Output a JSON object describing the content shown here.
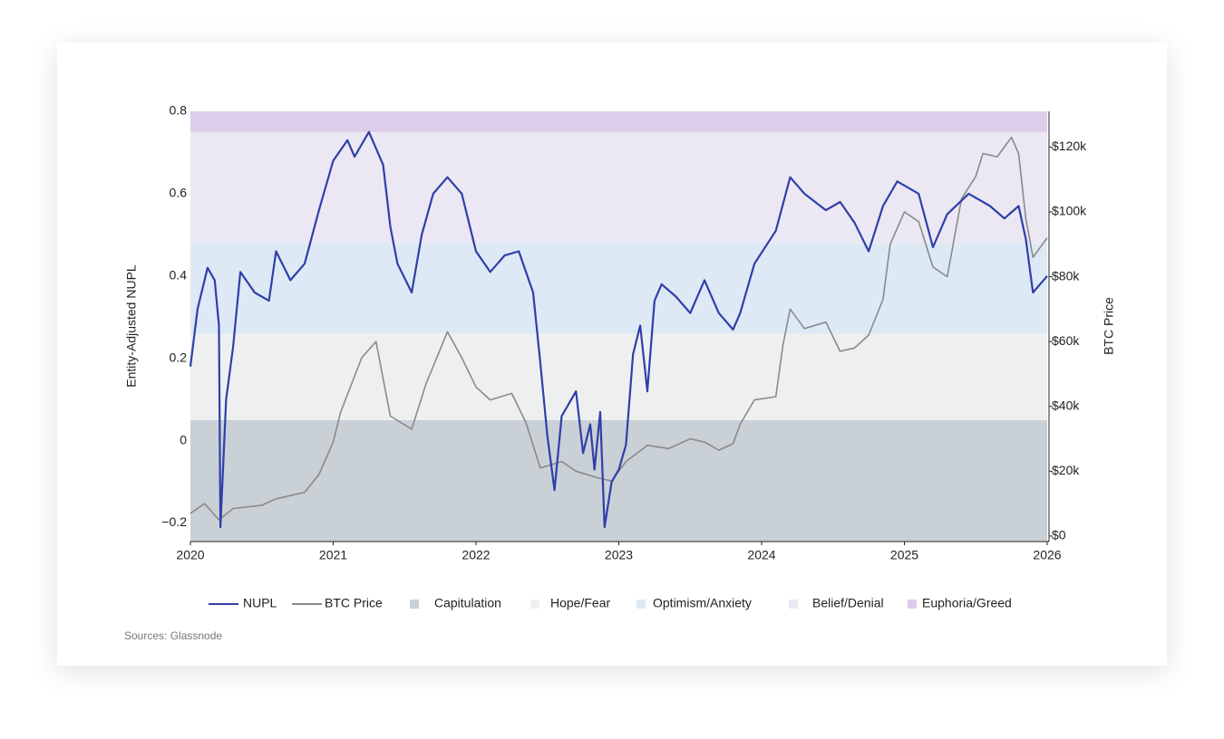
{
  "chart_data": {
    "type": "line",
    "ylabel": "Entity-Adjusted NUPL",
    "y2label": "BTC Price",
    "source": "Sources: Glassnode",
    "xlim": [
      2020,
      2026
    ],
    "xticks": [
      2020,
      2021,
      2022,
      2023,
      2024,
      2025,
      2026
    ],
    "ylim": [
      -0.245,
      0.8
    ],
    "yticks": [
      {
        "value": -0.2,
        "label": "−0.2"
      },
      0,
      0.2,
      0.4,
      0.6,
      0.8
    ],
    "y2lim": [
      -1700,
      131000
    ],
    "y2ticks": [
      {
        "value": 0,
        "label": "$0"
      },
      {
        "value": 20000,
        "label": "$20k"
      },
      {
        "value": 40000,
        "label": "$40k"
      },
      {
        "value": 60000,
        "label": "$60k"
      },
      {
        "value": 80000,
        "label": "$80k"
      },
      {
        "value": 100000,
        "label": "$100k"
      },
      {
        "value": 120000,
        "label": "$120k"
      }
    ],
    "bands": [
      {
        "name": "Capitulation",
        "color": "#c9d0d6",
        "range": [
          -0.245,
          0.05
        ]
      },
      {
        "name": "Hope/Fear",
        "color": "#eef0f0",
        "range": [
          0.05,
          0.26
        ]
      },
      {
        "name": "Optimism/Anxiety",
        "color": "#ddeaf6",
        "range": [
          0.26,
          0.48
        ]
      },
      {
        "name": "Belief/Denial",
        "color": "#ece8f3",
        "range": [
          0.48,
          0.75
        ]
      },
      {
        "name": "Euphoria/Greed",
        "color": "#dccdea",
        "range": [
          0.75,
          0.8
        ]
      }
    ],
    "series": [
      {
        "name": "NUPL",
        "color": "#2f3fa8",
        "x": [
          2020.0,
          2020.05,
          2020.12,
          2020.17,
          2020.2,
          2020.21,
          2020.25,
          2020.3,
          2020.35,
          2020.45,
          2020.55,
          2020.6,
          2020.7,
          2020.8,
          2020.9,
          2021.0,
          2021.1,
          2021.15,
          2021.25,
          2021.35,
          2021.4,
          2021.45,
          2021.55,
          2021.62,
          2021.7,
          2021.8,
          2021.9,
          2022.0,
          2022.1,
          2022.2,
          2022.3,
          2022.4,
          2022.45,
          2022.5,
          2022.55,
          2022.6,
          2022.7,
          2022.75,
          2022.8,
          2022.83,
          2022.87,
          2022.9,
          2022.95,
          2023.0,
          2023.05,
          2023.1,
          2023.15,
          2023.2,
          2023.25,
          2023.3,
          2023.4,
          2023.5,
          2023.6,
          2023.7,
          2023.8,
          2023.85,
          2023.95,
          2024.1,
          2024.2,
          2024.3,
          2024.45,
          2024.55,
          2024.65,
          2024.75,
          2024.85,
          2024.95,
          2025.1,
          2025.2,
          2025.3,
          2025.45,
          2025.6,
          2025.7,
          2025.8,
          2025.85,
          2025.9,
          2026.0
        ],
        "values": [
          0.18,
          0.32,
          0.42,
          0.39,
          0.28,
          -0.21,
          0.1,
          0.23,
          0.41,
          0.36,
          0.34,
          0.46,
          0.39,
          0.43,
          0.56,
          0.68,
          0.73,
          0.69,
          0.75,
          0.67,
          0.52,
          0.43,
          0.36,
          0.5,
          0.6,
          0.64,
          0.6,
          0.46,
          0.41,
          0.45,
          0.46,
          0.36,
          0.19,
          0.01,
          -0.12,
          0.06,
          0.12,
          -0.03,
          0.04,
          -0.07,
          0.07,
          -0.21,
          -0.1,
          -0.07,
          -0.01,
          0.21,
          0.28,
          0.12,
          0.34,
          0.38,
          0.35,
          0.31,
          0.39,
          0.31,
          0.27,
          0.31,
          0.43,
          0.51,
          0.64,
          0.6,
          0.56,
          0.58,
          0.53,
          0.46,
          0.57,
          0.63,
          0.6,
          0.47,
          0.55,
          0.6,
          0.57,
          0.54,
          0.57,
          0.49,
          0.36,
          0.4
        ]
      },
      {
        "name": "BTC Price",
        "color": "#8a8a8a",
        "axis": "y2",
        "x": [
          2020.0,
          2020.1,
          2020.2,
          2020.3,
          2020.5,
          2020.6,
          2020.8,
          2020.9,
          2021.0,
          2021.05,
          2021.2,
          2021.3,
          2021.4,
          2021.55,
          2021.65,
          2021.8,
          2021.9,
          2022.0,
          2022.1,
          2022.25,
          2022.35,
          2022.45,
          2022.6,
          2022.7,
          2022.85,
          2022.95,
          2023.05,
          2023.2,
          2023.35,
          2023.5,
          2023.6,
          2023.7,
          2023.8,
          2023.85,
          2023.95,
          2024.1,
          2024.15,
          2024.2,
          2024.3,
          2024.45,
          2024.55,
          2024.65,
          2024.75,
          2024.85,
          2024.9,
          2025.0,
          2025.1,
          2025.2,
          2025.3,
          2025.4,
          2025.5,
          2025.55,
          2025.65,
          2025.75,
          2025.8,
          2025.85,
          2025.9,
          2026.0
        ],
        "values": [
          7000,
          10000,
          5000,
          8500,
          9500,
          11500,
          13500,
          19000,
          29000,
          38000,
          55000,
          60000,
          37000,
          33000,
          47000,
          63000,
          55000,
          46000,
          42000,
          44000,
          35000,
          21000,
          23000,
          20000,
          18000,
          17000,
          23000,
          28000,
          27000,
          30000,
          29000,
          26500,
          28500,
          34500,
          42000,
          43000,
          59000,
          70000,
          64000,
          66000,
          57000,
          58000,
          62000,
          73000,
          90000,
          100000,
          97000,
          83000,
          80000,
          104000,
          111000,
          118000,
          117000,
          123000,
          118000,
          98000,
          86000,
          92000
        ]
      }
    ]
  }
}
